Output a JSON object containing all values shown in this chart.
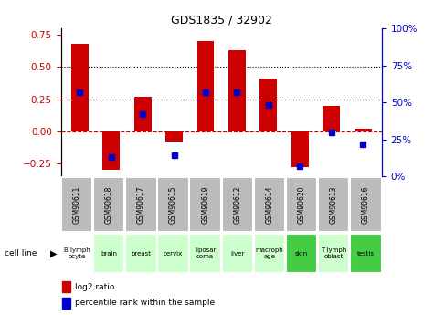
{
  "title": "GDS1835 / 32902",
  "samples": [
    "GSM90611",
    "GSM90618",
    "GSM90617",
    "GSM90615",
    "GSM90619",
    "GSM90612",
    "GSM90614",
    "GSM90620",
    "GSM90613",
    "GSM90616"
  ],
  "cell_lines": [
    "B lymph\nocyte",
    "brain",
    "breast",
    "cervix",
    "liposar\ncoma",
    "liver",
    "macroph\nage",
    "skin",
    "T lymph\noblast",
    "testis"
  ],
  "log2_ratio": [
    0.68,
    -0.3,
    0.27,
    -0.08,
    0.7,
    0.63,
    0.41,
    -0.28,
    0.2,
    0.02
  ],
  "percentile_rank": [
    57,
    13,
    42,
    14,
    57,
    57,
    48,
    7,
    30,
    22
  ],
  "bar_color": "#cc0000",
  "dot_color": "#0000cc",
  "ylim_left": [
    -0.35,
    0.8
  ],
  "ylim_right": [
    0,
    100
  ],
  "yticks_left": [
    -0.25,
    0.0,
    0.25,
    0.5,
    0.75
  ],
  "yticks_right": [
    0,
    25,
    50,
    75,
    100
  ],
  "hline_y": 0.0,
  "dotted_lines": [
    0.25,
    0.5
  ],
  "cell_line_colors": [
    "#ffffff",
    "#ccffcc",
    "#ccffcc",
    "#ccffcc",
    "#ccffcc",
    "#ccffcc",
    "#ccffcc",
    "#44cc44",
    "#ccffcc",
    "#44cc44"
  ],
  "sample_bg_color": "#bbbbbb",
  "legend_red": "log2 ratio",
  "legend_blue": "percentile rank within the sample",
  "cell_line_label": "cell line"
}
